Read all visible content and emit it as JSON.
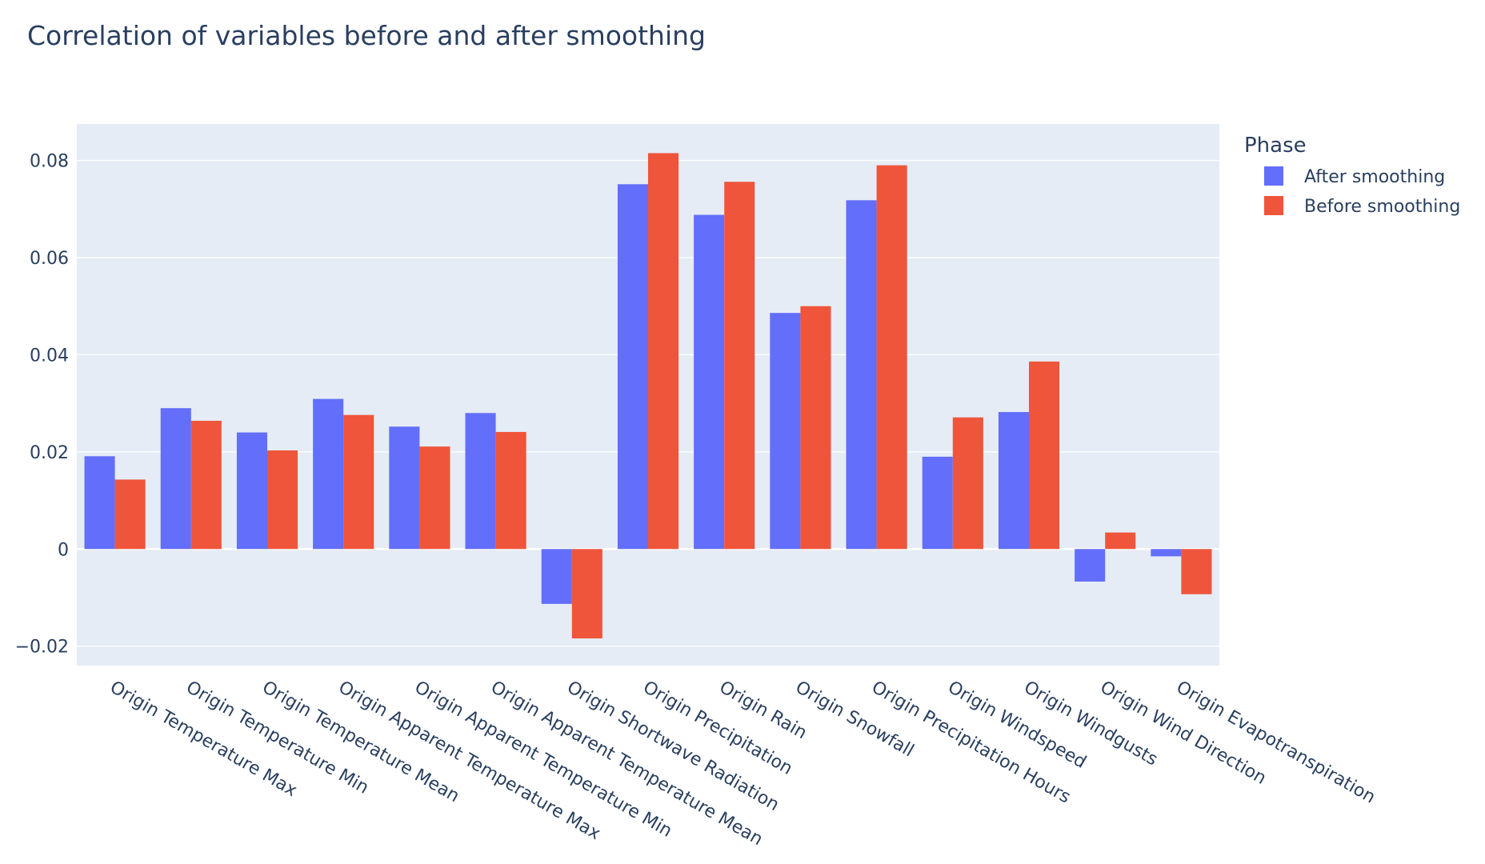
{
  "chart_data": {
    "type": "bar",
    "title": "Correlation of variables before and after smoothing",
    "xlabel": "",
    "ylabel": "",
    "ylim": [
      -0.024,
      0.0875
    ],
    "yticks": [
      -0.02,
      0,
      0.02,
      0.04,
      0.06,
      0.08
    ],
    "ytick_labels": [
      "−0.02",
      "0",
      "0.02",
      "0.04",
      "0.06",
      "0.08"
    ],
    "grid": true,
    "plot_bgcolor": "#e5ecf6",
    "legend_title": "Phase",
    "legend_position": "top-right",
    "categories": [
      "Origin Temperature Max",
      "Origin Temperature Min",
      "Origin Temperature Mean",
      "Origin Apparent Temperature Max",
      "Origin Apparent Temperature Min",
      "Origin Apparent Temperature Mean",
      "Origin Shortwave Radiation",
      "Origin Precipitation",
      "Origin Rain",
      "Origin Snowfall",
      "Origin Precipitation Hours",
      "Origin Windspeed",
      "Origin Windgusts",
      "Origin Wind Direction",
      "Origin Evapotranspiration"
    ],
    "series": [
      {
        "name": "After smoothing",
        "color": "#636efa",
        "values": [
          0.0191,
          0.029,
          0.024,
          0.0309,
          0.0252,
          0.028,
          -0.0113,
          0.0751,
          0.0688,
          0.0486,
          0.0718,
          0.019,
          0.0282,
          -0.0067,
          -0.0015
        ]
      },
      {
        "name": "Before smoothing",
        "color": "#ef553b",
        "values": [
          0.0143,
          0.0264,
          0.0203,
          0.0276,
          0.0211,
          0.0241,
          -0.0184,
          0.0815,
          0.0756,
          0.05,
          0.079,
          0.0271,
          0.0386,
          0.0034,
          -0.0093
        ]
      }
    ]
  }
}
